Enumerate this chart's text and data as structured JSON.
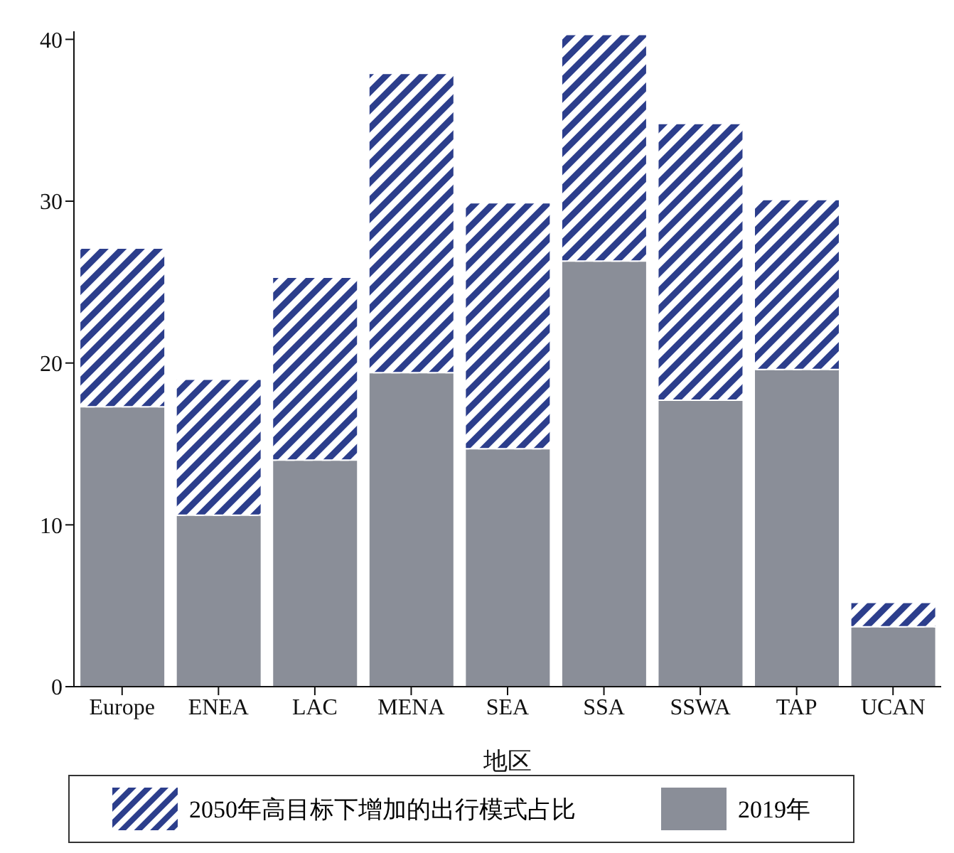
{
  "chart_data": {
    "type": "bar",
    "stacked": true,
    "xlabel": "地区",
    "categories": [
      "Europe",
      "ENEA",
      "LAC",
      "MENA",
      "SEA",
      "SSA",
      "SSWA",
      "TAP",
      "UCAN"
    ],
    "series": [
      {
        "name": "2019年",
        "color": "#8a8e98",
        "values": [
          17.3,
          10.6,
          14.0,
          19.4,
          14.7,
          26.3,
          17.7,
          19.6,
          3.7
        ]
      },
      {
        "name": "2050年高目标下增加的出行模式占比",
        "color": "#2c3e8c",
        "values": [
          9.8,
          8.4,
          11.3,
          18.5,
          15.2,
          14.0,
          17.1,
          10.5,
          1.5
        ]
      }
    ],
    "ylim": [
      0,
      40.5
    ],
    "yticks": [
      0,
      10,
      20,
      30,
      40
    ],
    "grid": false,
    "legend": "bottom"
  }
}
